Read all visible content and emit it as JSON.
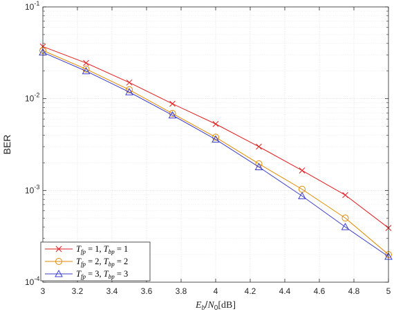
{
  "chart_data": {
    "type": "line",
    "x": [
      3,
      3.25,
      3.5,
      3.75,
      4,
      4.25,
      4.5,
      4.75,
      5
    ],
    "xlim": [
      3,
      5
    ],
    "ylim": [
      0.0001,
      0.1
    ],
    "yscale": "log",
    "xticks": [
      "3",
      "3.2",
      "3.4",
      "3.6",
      "3.8",
      "4",
      "4.2",
      "4.4",
      "4.6",
      "4.8",
      "5"
    ],
    "yticks": [
      {
        "base": "10",
        "exp": "-1"
      },
      {
        "base": "10",
        "exp": "-2"
      },
      {
        "base": "10",
        "exp": "-3"
      },
      {
        "base": "10",
        "exp": "-4"
      }
    ],
    "ylabel": "BER",
    "xlabel": {
      "var_a": "E",
      "sub_a": "b",
      "slash": "/",
      "var_b": "N",
      "sub_b": "0",
      "unit": "[dB]"
    },
    "grid": true,
    "minor_grid": true,
    "legend_position": "bottom-left",
    "series": [
      {
        "name": {
          "t1": "T",
          "s1": "fp",
          "e1": " = 1, ",
          "t2": "T",
          "s2": "bp",
          "e2": " = 1"
        },
        "color": "#e31a1c",
        "marker": "x",
        "values": [
          0.037,
          0.0245,
          0.015,
          0.0088,
          0.0053,
          0.003,
          0.00165,
          0.00089,
          0.00039
        ]
      },
      {
        "name": {
          "t1": "T",
          "s1": "fp",
          "e1": " = 2, ",
          "t2": "T",
          "s2": "bp",
          "e2": " = 2"
        },
        "color": "#e08a00",
        "marker": "circle",
        "values": [
          0.0335,
          0.021,
          0.0125,
          0.0069,
          0.0038,
          0.00195,
          0.00103,
          0.0005,
          0.0002
        ]
      },
      {
        "name": {
          "t1": "T",
          "s1": "fp",
          "e1": " = 3, ",
          "t2": "T",
          "s2": "bp",
          "e2": " = 3"
        },
        "color": "#3c3ccc",
        "marker": "triangle",
        "values": [
          0.032,
          0.02,
          0.0118,
          0.0066,
          0.0036,
          0.0018,
          0.00087,
          0.0004,
          0.00019
        ]
      }
    ]
  }
}
